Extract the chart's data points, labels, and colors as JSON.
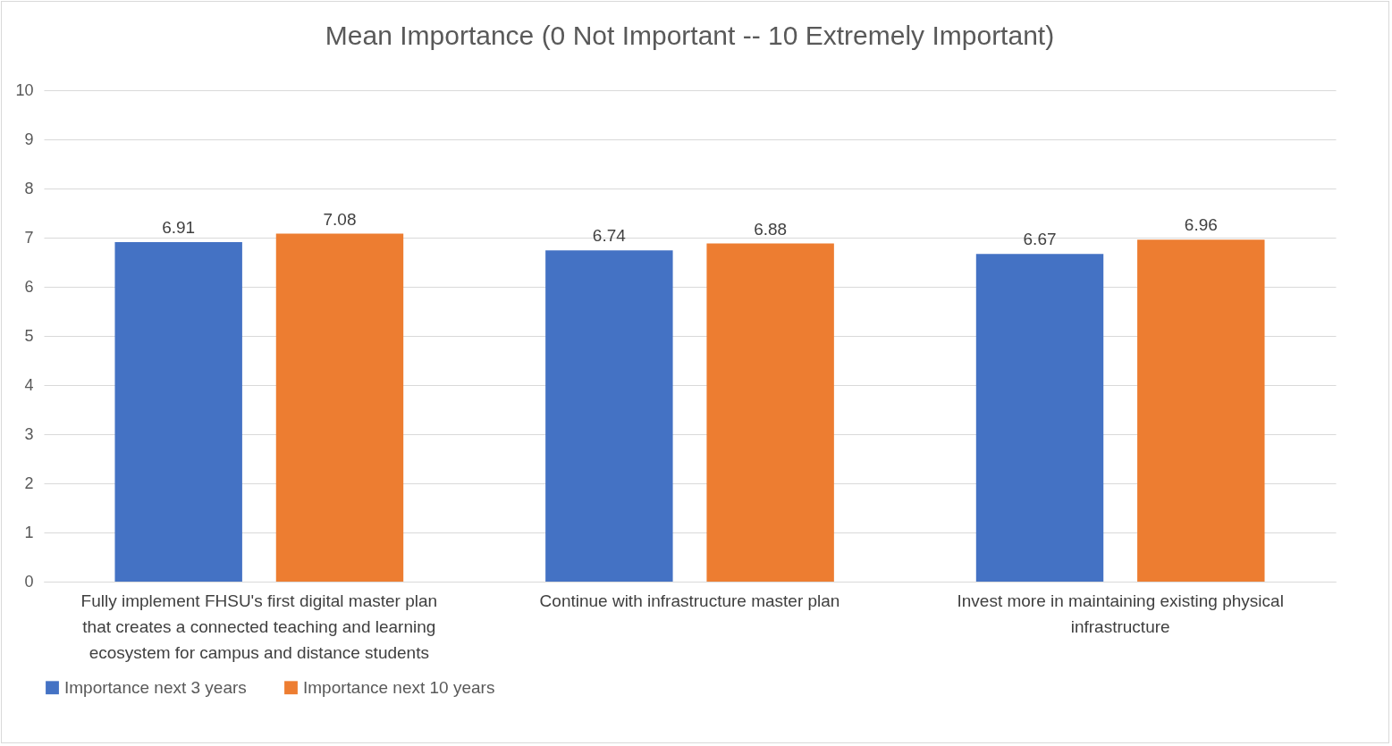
{
  "chart_data": {
    "type": "bar",
    "title": "Mean Importance (0 Not Important -- 10 Extremely Important)",
    "categories": [
      "Fully implement FHSU's first digital master plan that creates a connected teaching and learning ecosystem for campus and distance students",
      "Continue with infrastructure master plan",
      "Invest more in maintaining existing physical infrastructure"
    ],
    "series": [
      {
        "name": "Importance next 3 years",
        "color": "#4472c4",
        "values": [
          6.91,
          6.74,
          6.67
        ]
      },
      {
        "name": "Importance next 10 years",
        "color": "#ed7d31",
        "values": [
          7.08,
          6.88,
          6.96
        ]
      }
    ],
    "ylim": [
      0,
      10
    ],
    "yticks": [
      0,
      1,
      2,
      3,
      4,
      5,
      6,
      7,
      8,
      9,
      10
    ],
    "grid": "y",
    "legend": "bottom",
    "data_labels": true
  }
}
